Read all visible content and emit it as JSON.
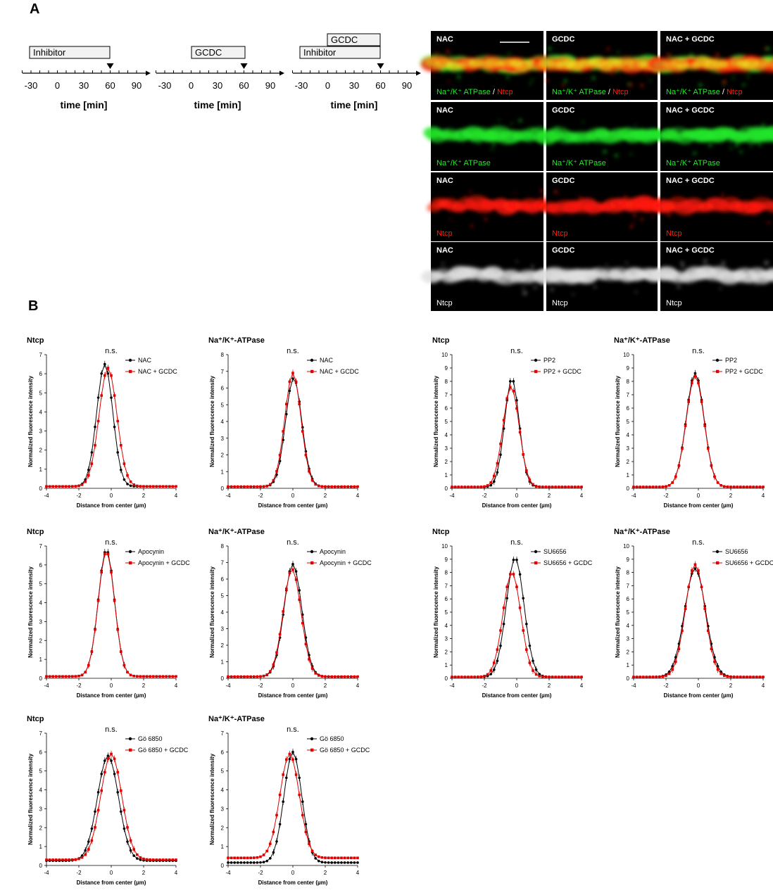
{
  "panel_labels": {
    "a": "A",
    "b": "B"
  },
  "timelines": [
    {
      "bars": [
        {
          "label": "Inhibitor"
        }
      ],
      "ticks": [
        "-30",
        "0",
        "30",
        "60",
        "90"
      ],
      "xlabel": "time [min]"
    },
    {
      "bars": [
        {
          "label": "GCDC"
        }
      ],
      "ticks": [
        "-30",
        "0",
        "30",
        "60",
        "90"
      ],
      "xlabel": "time [min]"
    },
    {
      "bars": [
        {
          "label": "GCDC"
        },
        {
          "label": "Inhibitor"
        }
      ],
      "ticks": [
        "-30",
        "0",
        "30",
        "60",
        "90"
      ],
      "xlabel": "time [min]"
    }
  ],
  "micrographs": {
    "conditions": [
      "NAC",
      "GCDC",
      "NAC + GCDC"
    ],
    "rows": [
      {
        "stain_green": "Na⁺/K⁺ ATPase",
        "separator": " / ",
        "stain_red": "Ntcp",
        "mode": "merge"
      },
      {
        "stain_green": "Na⁺/K⁺ ATPase",
        "separator": "",
        "stain_red": "",
        "mode": "green"
      },
      {
        "stain_green": "",
        "separator": "",
        "stain_red": "Ntcp",
        "mode": "red"
      },
      {
        "stain_green": "",
        "separator": "",
        "stain_red": "",
        "stain_white": "Ntcp",
        "mode": "gray"
      }
    ],
    "colors": {
      "green": "#22e82a",
      "red": "#ff1a0a",
      "white": "#ffffff"
    }
  },
  "chart_data": [
    {
      "type": "line",
      "title": "Ntcp",
      "annotation": "n.s.",
      "xlabel": "Distance from center (µm)",
      "ylabel": "Normalized fluorescence intensity",
      "xlim": [
        -4,
        4
      ],
      "ylim": [
        0,
        7
      ],
      "xticks": [
        "-4",
        "-2",
        "0",
        "2",
        "4"
      ],
      "yticks": [
        "0",
        "1",
        "2",
        "3",
        "4",
        "5",
        "6",
        "7"
      ],
      "series": [
        {
          "name": "NAC",
          "color": "#000000",
          "peak_x": -0.4,
          "peak_y": 6.5,
          "width": 0.5,
          "baseline": 0.1
        },
        {
          "name": "NAC + GCDC",
          "color": "#e00000",
          "peak_x": -0.2,
          "peak_y": 6.3,
          "width": 0.55,
          "baseline": 0.1
        }
      ]
    },
    {
      "type": "line",
      "title": "Na⁺/K⁺-ATPase",
      "annotation": "n.s.",
      "xlabel": "Distance from center (µm)",
      "ylabel": "Normalized fluorescence intensity",
      "xlim": [
        -4,
        4
      ],
      "ylim": [
        0,
        8
      ],
      "xticks": [
        "-4",
        "-2",
        "0",
        "2",
        "4"
      ],
      "yticks": [
        "0",
        "1",
        "2",
        "3",
        "4",
        "5",
        "6",
        "7",
        "8"
      ],
      "series": [
        {
          "name": "NAC",
          "color": "#000000",
          "peak_x": 0.05,
          "peak_y": 6.6,
          "width": 0.5,
          "baseline": 0.1
        },
        {
          "name": "NAC + GCDC",
          "color": "#e00000",
          "peak_x": 0.0,
          "peak_y": 6.9,
          "width": 0.5,
          "baseline": 0.1
        }
      ]
    },
    {
      "type": "line",
      "title": "Ntcp",
      "annotation": "n.s.",
      "xlabel": "Distance from center (µm)",
      "ylabel": "Normalized fluorescence intensity",
      "xlim": [
        -4,
        4
      ],
      "ylim": [
        0,
        10
      ],
      "xticks": [
        "-4",
        "-2",
        "0",
        "2",
        "4"
      ],
      "yticks": [
        "0",
        "1",
        "2",
        "3",
        "4",
        "5",
        "6",
        "7",
        "8",
        "9",
        "10"
      ],
      "series": [
        {
          "name": "PP2",
          "color": "#000000",
          "peak_x": -0.3,
          "peak_y": 8.2,
          "width": 0.45,
          "baseline": 0.1
        },
        {
          "name": "PP2 + GCDC",
          "color": "#e00000",
          "peak_x": -0.35,
          "peak_y": 7.6,
          "width": 0.5,
          "baseline": 0.1
        }
      ]
    },
    {
      "type": "line",
      "title": "Na⁺/K⁺-ATPase",
      "annotation": "n.s.",
      "xlabel": "Distance from center (µm)",
      "ylabel": "Normalized fluorescence intensity",
      "xlim": [
        -4,
        4
      ],
      "ylim": [
        0,
        10
      ],
      "xticks": [
        "-4",
        "-2",
        "0",
        "2",
        "4"
      ],
      "yticks": [
        "0",
        "1",
        "2",
        "3",
        "4",
        "5",
        "6",
        "7",
        "8",
        "9",
        "10"
      ],
      "series": [
        {
          "name": "PP2",
          "color": "#000000",
          "peak_x": -0.2,
          "peak_y": 8.6,
          "width": 0.55,
          "baseline": 0.1
        },
        {
          "name": "PP2 + GCDC",
          "color": "#e00000",
          "peak_x": -0.2,
          "peak_y": 8.4,
          "width": 0.55,
          "baseline": 0.1
        }
      ]
    },
    {
      "type": "line",
      "title": "Ntcp",
      "annotation": "n.s.",
      "xlabel": "Distance from center (µm)",
      "ylabel": "Normalized fluorescence intensity",
      "xlim": [
        -4,
        4
      ],
      "ylim": [
        0,
        7
      ],
      "xticks": [
        "-4",
        "-2",
        "0",
        "2",
        "4"
      ],
      "yticks": [
        "0",
        "1",
        "2",
        "3",
        "4",
        "5",
        "6",
        "7"
      ],
      "series": [
        {
          "name": "Apocynin",
          "color": "#000000",
          "peak_x": -0.3,
          "peak_y": 6.8,
          "width": 0.5,
          "baseline": 0.1
        },
        {
          "name": "Apocynin + GCDC",
          "color": "#e00000",
          "peak_x": -0.3,
          "peak_y": 6.7,
          "width": 0.5,
          "baseline": 0.1
        }
      ]
    },
    {
      "type": "line",
      "title": "Na⁺/K⁺-ATPase",
      "annotation": "n.s.",
      "xlabel": "Distance from center (µm)",
      "ylabel": "Normalized fluorescence intensity",
      "xlim": [
        -4,
        4
      ],
      "ylim": [
        0,
        8
      ],
      "xticks": [
        "-4",
        "-2",
        "0",
        "2",
        "4"
      ],
      "yticks": [
        "0",
        "1",
        "2",
        "3",
        "4",
        "5",
        "6",
        "7",
        "8"
      ],
      "series": [
        {
          "name": "Apocynin",
          "color": "#000000",
          "peak_x": 0.0,
          "peak_y": 6.9,
          "width": 0.55,
          "baseline": 0.1
        },
        {
          "name": "Apocynin + GCDC",
          "color": "#e00000",
          "peak_x": -0.05,
          "peak_y": 6.6,
          "width": 0.55,
          "baseline": 0.1
        }
      ]
    },
    {
      "type": "line",
      "title": "Ntcp",
      "annotation": "n.s.",
      "xlabel": "Distance from center (µm)",
      "ylabel": "Normalized fluorescence intensity",
      "xlim": [
        -4,
        4
      ],
      "ylim": [
        0,
        10
      ],
      "xticks": [
        "-4",
        "-2",
        "0",
        "2",
        "4"
      ],
      "yticks": [
        "0",
        "1",
        "2",
        "3",
        "4",
        "5",
        "6",
        "7",
        "8",
        "9",
        "10"
      ],
      "series": [
        {
          "name": "SU6656",
          "color": "#000000",
          "peak_x": -0.1,
          "peak_y": 9.1,
          "width": 0.55,
          "baseline": 0.1
        },
        {
          "name": "SU6656 + GCDC",
          "color": "#e00000",
          "peak_x": -0.3,
          "peak_y": 8.0,
          "width": 0.55,
          "baseline": 0.1
        }
      ]
    },
    {
      "type": "line",
      "title": "Na⁺/K⁺-ATPase",
      "annotation": "n.s.",
      "xlabel": "Distance from center (µm)",
      "ylabel": "Normalized fluorescence intensity",
      "xlim": [
        -4,
        4
      ],
      "ylim": [
        0,
        10
      ],
      "xticks": [
        "-4",
        "-2",
        "0",
        "2",
        "4"
      ],
      "yticks": [
        "0",
        "1",
        "2",
        "3",
        "4",
        "5",
        "6",
        "7",
        "8",
        "9",
        "10"
      ],
      "series": [
        {
          "name": "SU6656",
          "color": "#000000",
          "peak_x": -0.2,
          "peak_y": 8.3,
          "width": 0.65,
          "baseline": 0.1
        },
        {
          "name": "SU6656 + GCDC",
          "color": "#e00000",
          "peak_x": -0.2,
          "peak_y": 8.6,
          "width": 0.6,
          "baseline": 0.1
        }
      ]
    },
    {
      "type": "line",
      "title": "Ntcp",
      "annotation": "n.s.",
      "xlabel": "Distance from center (µm)",
      "ylabel": "Normalized fluorescence intensity",
      "xlim": [
        -4,
        4
      ],
      "ylim": [
        0,
        7
      ],
      "xticks": [
        "-4",
        "-2",
        "0",
        "2",
        "4"
      ],
      "yticks": [
        "0",
        "1",
        "2",
        "3",
        "4",
        "5",
        "6",
        "7"
      ],
      "series": [
        {
          "name": "Gö 6850",
          "color": "#000000",
          "peak_x": -0.2,
          "peak_y": 5.8,
          "width": 0.65,
          "baseline": 0.25
        },
        {
          "name": "Gö 6850 + GCDC",
          "color": "#e00000",
          "peak_x": 0.0,
          "peak_y": 5.9,
          "width": 0.65,
          "baseline": 0.3
        }
      ]
    },
    {
      "type": "line",
      "title": "Na⁺/K⁺-ATPase",
      "annotation": "n.s.",
      "xlabel": "Distance from center (µm)",
      "ylabel": "Normalized fluorescence intensity",
      "xlim": [
        -4,
        4
      ],
      "ylim": [
        0,
        7
      ],
      "xticks": [
        "-4",
        "-2",
        "0",
        "2",
        "4"
      ],
      "yticks": [
        "0",
        "1",
        "2",
        "3",
        "4",
        "5",
        "6",
        "7"
      ],
      "series": [
        {
          "name": "Gö 6850",
          "color": "#000000",
          "peak_x": 0.0,
          "peak_y": 6.0,
          "width": 0.55,
          "baseline": 0.15
        },
        {
          "name": "Gö 6850 + GCDC",
          "color": "#e00000",
          "peak_x": -0.2,
          "peak_y": 5.9,
          "width": 0.6,
          "baseline": 0.4
        }
      ]
    }
  ]
}
